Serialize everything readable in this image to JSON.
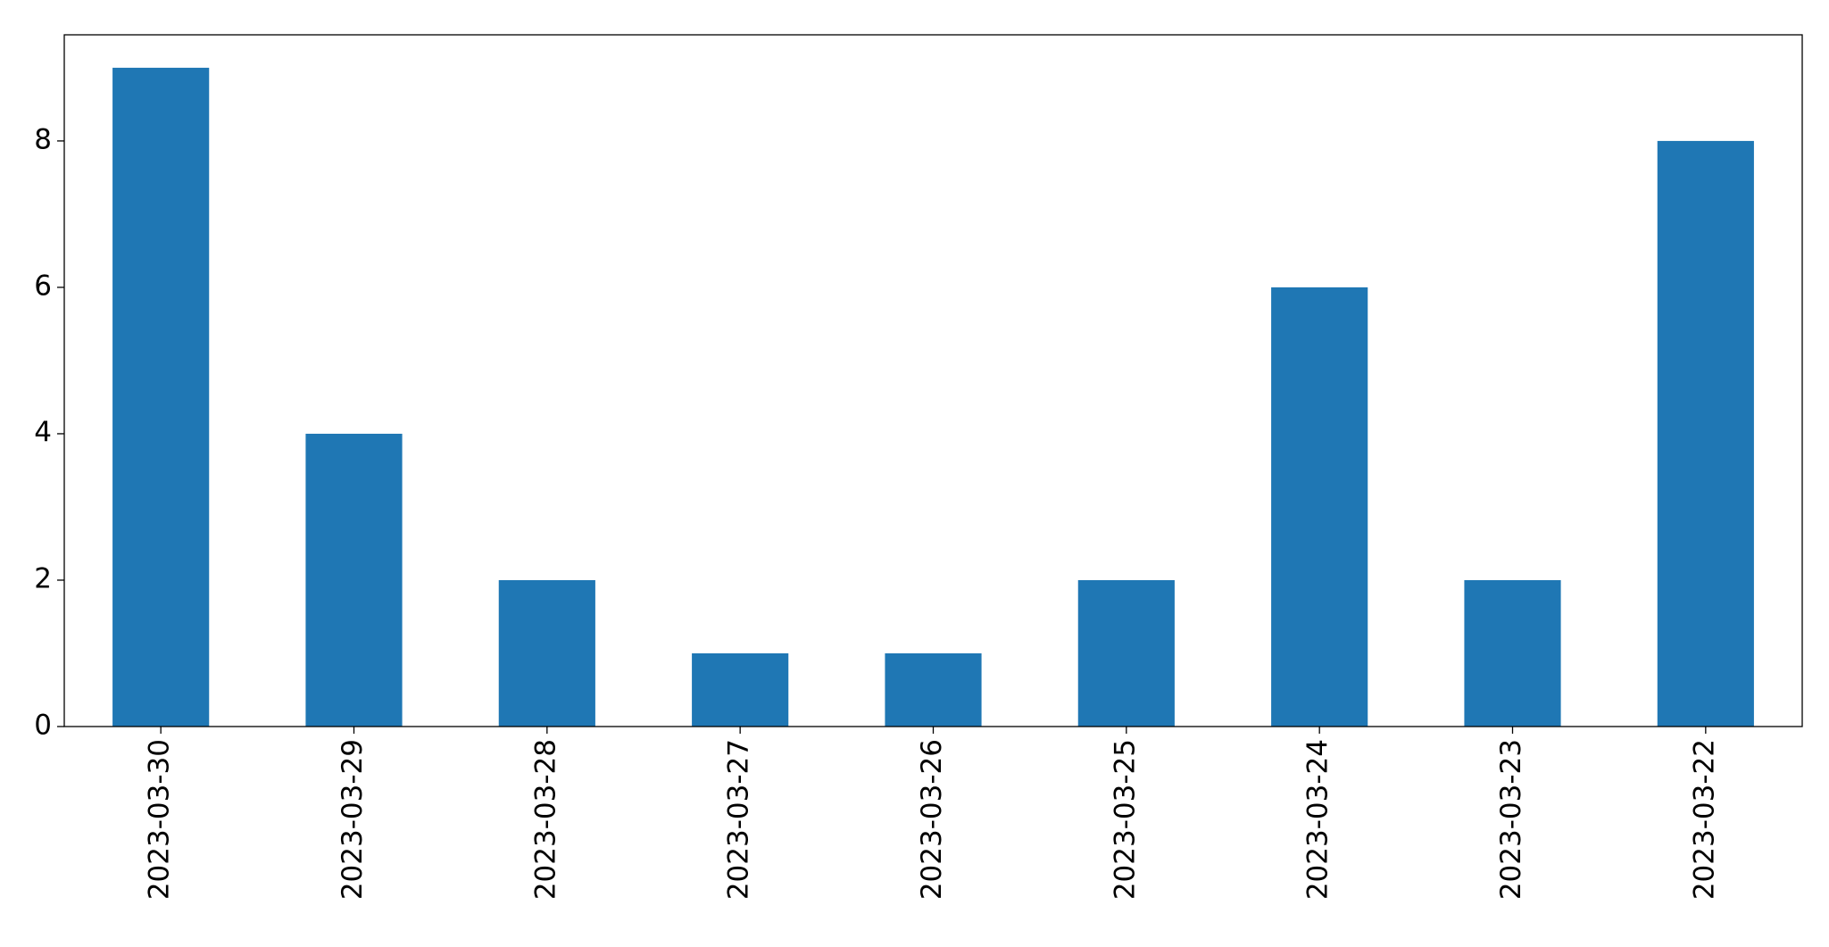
{
  "chart_data": {
    "type": "bar",
    "categories": [
      "2023-03-30",
      "2023-03-29",
      "2023-03-28",
      "2023-03-27",
      "2023-03-26",
      "2023-03-25",
      "2023-03-24",
      "2023-03-23",
      "2023-03-22"
    ],
    "values": [
      9,
      4,
      2,
      1,
      1,
      2,
      6,
      2,
      8
    ],
    "color": "#1f77b4",
    "ylim": [
      0,
      9.45
    ],
    "yticks": [
      0,
      2,
      4,
      6,
      8
    ],
    "grid": false
  }
}
